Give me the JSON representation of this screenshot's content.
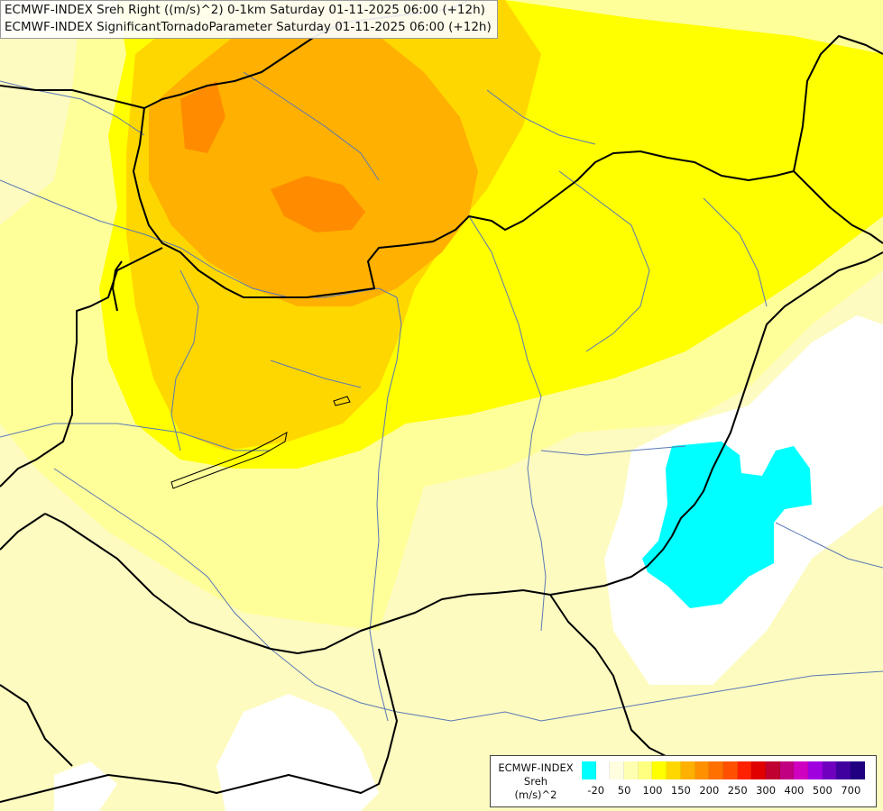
{
  "title": {
    "line1": "ECMWF-INDEX Sreh Right ((m/s)^2) 0-1km Saturday 01-11-2025 06:00 (+12h)",
    "line2": "ECMWF-INDEX SignificantTornadoParameter Saturday 01-11-2025 06:00 (+12h)"
  },
  "legend": {
    "line1": "ECMWF-INDEX",
    "line2": "Sreh",
    "line3": "(m/s)^2",
    "colors": [
      "#00ffff",
      "#ffffff",
      "#ffffe0",
      "#ffffb0",
      "#ffff80",
      "#ffff00",
      "#ffd700",
      "#ffb000",
      "#ff9000",
      "#ff7000",
      "#ff5000",
      "#ff2000",
      "#e00000",
      "#c00030",
      "#c00080",
      "#d000c0",
      "#a000e0",
      "#7000c0",
      "#4000a0",
      "#200080"
    ],
    "tick_labels": [
      "-20",
      "50",
      "100",
      "150",
      "200",
      "250",
      "300",
      "400",
      "500",
      "700"
    ]
  },
  "colors": {
    "cyan": "#00ffff",
    "white": "#ffffff",
    "pale_yellow": "#fdfbc0",
    "light_yellow": "#ffff9a",
    "yellow": "#ffff00",
    "gold": "#ffd700",
    "orange": "#ffb000",
    "dark_orange": "#ff8c00",
    "border": "#000000",
    "river": "#5a78b4"
  }
}
